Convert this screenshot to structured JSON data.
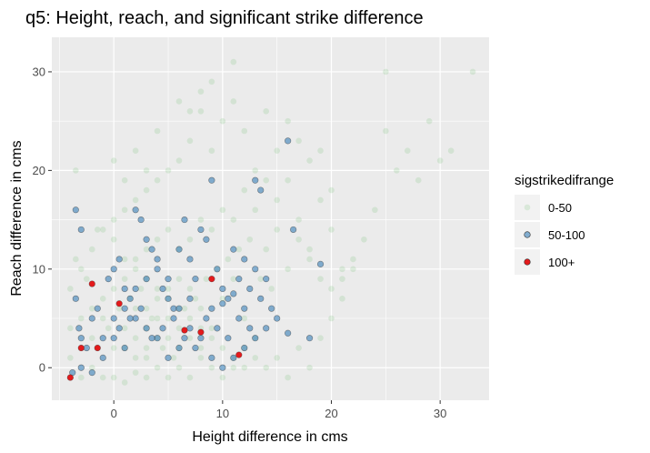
{
  "chart_data": {
    "type": "scatter",
    "title": "q5: Height, reach, and significant strike difference",
    "xlabel": "Height difference in cms",
    "ylabel": "Reach difference in cms",
    "xlim": [
      -5.7,
      34.5
    ],
    "ylim": [
      -3.3,
      33.5
    ],
    "x_ticks": [
      0,
      10,
      20,
      30
    ],
    "y_ticks": [
      0,
      10,
      20,
      30
    ],
    "grid": true,
    "legend": {
      "title": "sigstrikedifrange",
      "placement": "right",
      "entries": [
        "0-50",
        "50-100",
        "100+"
      ]
    },
    "series": [
      {
        "name": "0-50",
        "color": "#4daf4a",
        "opacity": 0.15,
        "points": [
          [
            -3.5,
            20
          ],
          [
            -1.5,
            14
          ],
          [
            0,
            13
          ],
          [
            1,
            11
          ],
          [
            2,
            10
          ],
          [
            3,
            9
          ],
          [
            4,
            8
          ],
          [
            5,
            7
          ],
          [
            6,
            6
          ],
          [
            7,
            5
          ],
          [
            8,
            4
          ],
          [
            9,
            3
          ],
          [
            10,
            2
          ],
          [
            11,
            1
          ],
          [
            12,
            0
          ],
          [
            -2,
            3
          ],
          [
            -1,
            5
          ],
          [
            0,
            2
          ],
          [
            1,
            4
          ],
          [
            2,
            6
          ],
          [
            3,
            1
          ],
          [
            4,
            3
          ],
          [
            5,
            5
          ],
          [
            6,
            2
          ],
          [
            7,
            8
          ],
          [
            8,
            6
          ],
          [
            9,
            4
          ],
          [
            10,
            7
          ],
          [
            11,
            9
          ],
          [
            12,
            5
          ],
          [
            13,
            3
          ],
          [
            14,
            12
          ],
          [
            15,
            14
          ],
          [
            16,
            10
          ],
          [
            17,
            15
          ],
          [
            18,
            12
          ],
          [
            19,
            17
          ],
          [
            20,
            14
          ],
          [
            21,
            9
          ],
          [
            22,
            11
          ],
          [
            24,
            16
          ],
          [
            25,
            24
          ],
          [
            26,
            20
          ],
          [
            27,
            22
          ],
          [
            28,
            19
          ],
          [
            29,
            25
          ],
          [
            30,
            21
          ],
          [
            31,
            22
          ],
          [
            33,
            30
          ],
          [
            25,
            30
          ],
          [
            9,
            22
          ],
          [
            10,
            25
          ],
          [
            11,
            27
          ],
          [
            12,
            24
          ],
          [
            8,
            26
          ],
          [
            7,
            23
          ],
          [
            6,
            21
          ],
          [
            5,
            20
          ],
          [
            4,
            19
          ],
          [
            3,
            18
          ],
          [
            2,
            17
          ],
          [
            1,
            16
          ],
          [
            0,
            15
          ],
          [
            -1,
            14
          ],
          [
            -2,
            12
          ],
          [
            -3,
            10
          ],
          [
            -4,
            8
          ],
          [
            -4,
            4
          ],
          [
            -4,
            1
          ],
          [
            -3,
            -1
          ],
          [
            -2,
            0
          ],
          [
            -1,
            -1
          ],
          [
            0,
            -1
          ],
          [
            1,
            -1.5
          ],
          [
            2,
            -0.5
          ],
          [
            3,
            -1
          ],
          [
            4,
            0
          ],
          [
            5,
            -1
          ],
          [
            6,
            0
          ],
          [
            7,
            -1
          ],
          [
            8,
            1
          ],
          [
            9,
            0
          ],
          [
            10,
            -1
          ],
          [
            11,
            0
          ],
          [
            12,
            2
          ],
          [
            13,
            1
          ],
          [
            14,
            0
          ],
          [
            15,
            1
          ],
          [
            16,
            -1
          ],
          [
            17,
            2
          ],
          [
            18,
            0
          ],
          [
            19,
            3
          ],
          [
            20,
            5
          ],
          [
            21,
            7
          ],
          [
            22,
            10
          ],
          [
            23,
            13
          ],
          [
            16,
            25
          ],
          [
            17,
            23
          ],
          [
            18,
            21
          ],
          [
            19,
            22
          ],
          [
            20,
            18
          ],
          [
            13,
            20
          ],
          [
            14,
            19
          ],
          [
            15,
            17
          ],
          [
            13,
            16
          ],
          [
            12,
            18
          ],
          [
            11,
            15
          ],
          [
            10,
            16
          ],
          [
            9,
            14
          ],
          [
            8,
            15
          ],
          [
            7,
            13
          ],
          [
            6,
            12
          ],
          [
            5,
            14
          ],
          [
            4,
            13
          ],
          [
            3,
            12
          ],
          [
            2,
            11
          ],
          [
            1,
            9
          ],
          [
            0,
            8
          ],
          [
            -1,
            7
          ],
          [
            -2,
            6
          ],
          [
            -3,
            5
          ],
          [
            2,
            3
          ],
          [
            3,
            4
          ],
          [
            4,
            5
          ],
          [
            5,
            3
          ],
          [
            6,
            4
          ],
          [
            7,
            3
          ],
          [
            8,
            2
          ],
          [
            3,
            6
          ],
          [
            4,
            7
          ],
          [
            5,
            8
          ],
          [
            6,
            9
          ],
          [
            1,
            2
          ],
          [
            2,
            1
          ],
          [
            3,
            2
          ],
          [
            0.5,
            6
          ],
          [
            1.5,
            7
          ],
          [
            2.5,
            8
          ],
          [
            3.5,
            5
          ],
          [
            4.5,
            2
          ],
          [
            5.5,
            1
          ],
          [
            6.5,
            6
          ],
          [
            7.5,
            7
          ],
          [
            8.5,
            9
          ],
          [
            9.5,
            10
          ],
          [
            10.5,
            11
          ],
          [
            11.5,
            12
          ],
          [
            12.5,
            13
          ],
          [
            13.5,
            9
          ],
          [
            14.5,
            8
          ],
          [
            -0.5,
            4
          ],
          [
            -1.5,
            2
          ],
          [
            -2.5,
            9
          ],
          [
            -3.5,
            11
          ],
          [
            0,
            21
          ],
          [
            1,
            19
          ],
          [
            2,
            22
          ],
          [
            3,
            20
          ],
          [
            4,
            24
          ],
          [
            6,
            27
          ],
          [
            7,
            26
          ],
          [
            8,
            28
          ],
          [
            9,
            29
          ],
          [
            11,
            31
          ],
          [
            14,
            26
          ],
          [
            15,
            22
          ],
          [
            16,
            19
          ],
          [
            17,
            13
          ],
          [
            18,
            11
          ],
          [
            19,
            9
          ],
          [
            20,
            8
          ],
          [
            21,
            10
          ]
        ]
      },
      {
        "name": "50-100",
        "color": "#377eb8",
        "opacity": 0.6,
        "points": [
          [
            -3.5,
            16
          ],
          [
            -3,
            14
          ],
          [
            -3.5,
            7
          ],
          [
            -3.2,
            4
          ],
          [
            -3,
            3
          ],
          [
            -2.5,
            2
          ],
          [
            -2,
            5
          ],
          [
            -1.5,
            6
          ],
          [
            -1,
            3
          ],
          [
            -0.5,
            9
          ],
          [
            0,
            10
          ],
          [
            0.5,
            11
          ],
          [
            1,
            8
          ],
          [
            1.5,
            7
          ],
          [
            2,
            16
          ],
          [
            2.5,
            15
          ],
          [
            3,
            13
          ],
          [
            3.5,
            12
          ],
          [
            4,
            10
          ],
          [
            4.5,
            8
          ],
          [
            5,
            7
          ],
          [
            5.5,
            6
          ],
          [
            6,
            12
          ],
          [
            6.5,
            15
          ],
          [
            7,
            11
          ],
          [
            7.5,
            9
          ],
          [
            8,
            14
          ],
          [
            8.5,
            13
          ],
          [
            9,
            19
          ],
          [
            9.5,
            10
          ],
          [
            10,
            8
          ],
          [
            10.5,
            7
          ],
          [
            11,
            12
          ],
          [
            11.5,
            9
          ],
          [
            12,
            11
          ],
          [
            12.5,
            8
          ],
          [
            13,
            10
          ],
          [
            13.5,
            7
          ],
          [
            14,
            9
          ],
          [
            14.5,
            6
          ],
          [
            13,
            19
          ],
          [
            13.5,
            18
          ],
          [
            16,
            23
          ],
          [
            16.5,
            14
          ],
          [
            18,
            3
          ],
          [
            19,
            10.5
          ],
          [
            16,
            3.5
          ],
          [
            15,
            5
          ],
          [
            14,
            4
          ],
          [
            13,
            3
          ],
          [
            12,
            2
          ],
          [
            11,
            1
          ],
          [
            10,
            0
          ],
          [
            9,
            1
          ],
          [
            8,
            3
          ],
          [
            7,
            4
          ],
          [
            6,
            2
          ],
          [
            5,
            1
          ],
          [
            4,
            3
          ],
          [
            3,
            4
          ],
          [
            2,
            5
          ],
          [
            1,
            2
          ],
          [
            0,
            3
          ],
          [
            -1,
            1
          ],
          [
            -2,
            -0.5
          ],
          [
            -3,
            0
          ],
          [
            -3.8,
            -0.5
          ],
          [
            0.5,
            4
          ],
          [
            1.5,
            5
          ],
          [
            2.5,
            6
          ],
          [
            3.5,
            3
          ],
          [
            4.5,
            4
          ],
          [
            5.5,
            5
          ],
          [
            6.5,
            3
          ],
          [
            7.5,
            2
          ],
          [
            8.5,
            5
          ],
          [
            9.5,
            4
          ],
          [
            10.5,
            3
          ],
          [
            11.5,
            5
          ],
          [
            12.5,
            4
          ],
          [
            6,
            6
          ],
          [
            7,
            7
          ],
          [
            5,
            9
          ],
          [
            4,
            11
          ],
          [
            3,
            9
          ],
          [
            2,
            8
          ],
          [
            1,
            6
          ],
          [
            0,
            5
          ],
          [
            9,
            6
          ],
          [
            10,
            6.5
          ],
          [
            11,
            7.5
          ],
          [
            12,
            6
          ]
        ]
      },
      {
        "name": "100+",
        "color": "#e41a1c",
        "opacity": 1,
        "points": [
          [
            -4,
            -1
          ],
          [
            -3,
            2
          ],
          [
            -2,
            8.5
          ],
          [
            -1.5,
            2
          ],
          [
            0.5,
            6.5
          ],
          [
            6.5,
            3.8
          ],
          [
            8,
            3.6
          ],
          [
            9,
            9
          ],
          [
            11.5,
            1.3
          ]
        ]
      }
    ]
  }
}
